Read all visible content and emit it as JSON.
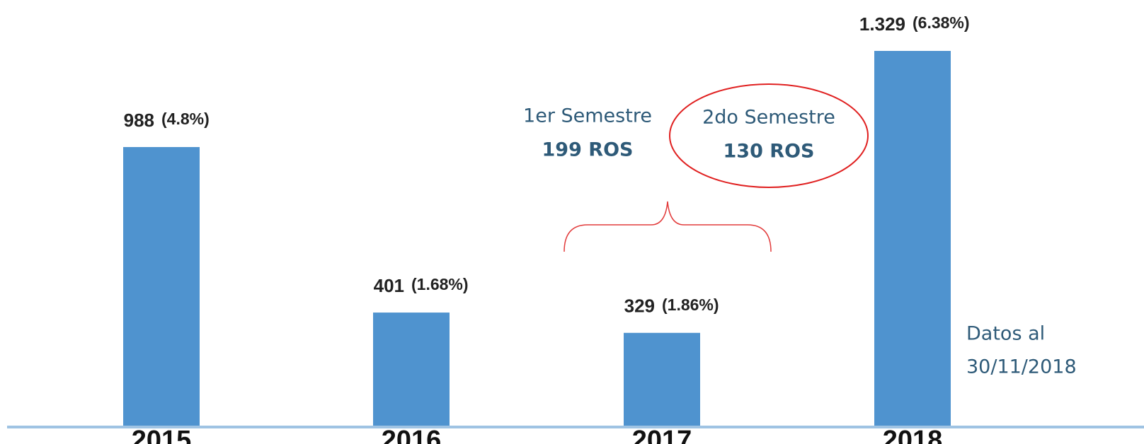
{
  "chart_data": {
    "type": "bar",
    "categories": [
      "2015",
      "2016",
      "2017",
      "2018"
    ],
    "values": [
      988,
      401,
      329,
      1329
    ],
    "value_labels": [
      "988",
      "401",
      "329",
      "1.329"
    ],
    "share_labels": [
      "(4.8%)",
      "(1.68%)",
      "(1.86%)",
      "(6.38%)"
    ],
    "color": "#4f93cf",
    "annotations": {
      "first_half": {
        "title": "1er Semestre",
        "count": "199 ROS"
      },
      "second_half": {
        "title": "2do Semestre",
        "count": "130 ROS"
      },
      "note": [
        "Datos al",
        "30/11/2018"
      ]
    }
  }
}
